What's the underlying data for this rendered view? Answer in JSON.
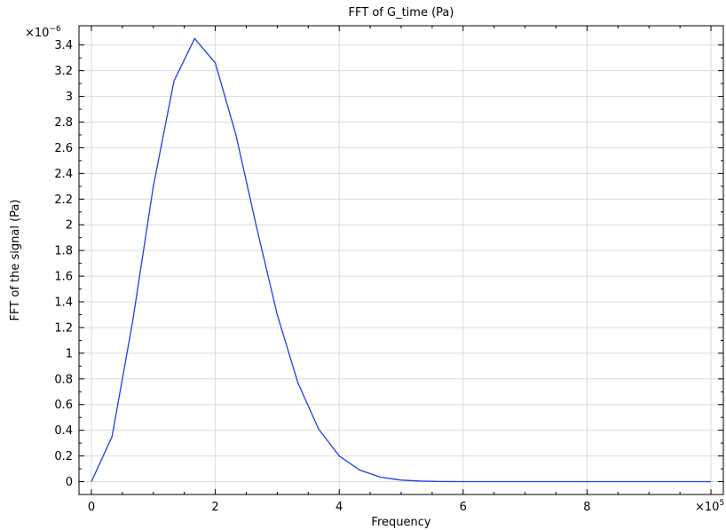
{
  "chart_data": {
    "type": "line",
    "title": "FFT of G_time (Pa)",
    "xlabel": "Frequency",
    "ylabel": "FFT of the signal (Pa)",
    "x_multiplier": "×10",
    "x_exponent": "5",
    "y_multiplier": "×10",
    "y_exponent": "−6",
    "xlim": [
      -0.2,
      10.2
    ],
    "ylim": [
      -0.1,
      3.55
    ],
    "x_ticks": [
      0,
      2,
      4,
      6,
      8
    ],
    "x_tick_labels": [
      "0",
      "2",
      "4",
      "6",
      "8"
    ],
    "y_ticks": [
      0,
      0.2,
      0.4,
      0.6,
      0.8,
      1,
      1.2,
      1.4,
      1.6,
      1.8,
      2,
      2.2,
      2.4,
      2.6,
      2.8,
      3,
      3.2,
      3.4
    ],
    "y_tick_labels": [
      "0",
      "0.2",
      "0.4",
      "0.6",
      "0.8",
      "1",
      "1.2",
      "1.4",
      "1.6",
      "1.8",
      "2",
      "2.2",
      "2.4",
      "2.6",
      "2.8",
      "3",
      "3.2",
      "3.4"
    ],
    "grid": true,
    "color": "#1f3ee6",
    "series": [
      {
        "x": [
          0,
          0.333,
          0.667,
          1.0,
          1.333,
          1.667,
          2.0,
          2.333,
          2.667,
          3.0,
          3.333,
          3.667,
          4.0,
          4.333,
          4.667,
          5.0,
          5.333,
          5.667,
          6.0,
          6.667,
          7.333,
          8.0,
          8.667,
          9.333,
          10.0
        ],
        "y": [
          0,
          0.35,
          1.25,
          2.3,
          3.12,
          3.45,
          3.26,
          2.7,
          1.98,
          1.3,
          0.77,
          0.41,
          0.2,
          0.09,
          0.035,
          0.012,
          0.004,
          0.001,
          0,
          0,
          0,
          0,
          0,
          0,
          0
        ]
      }
    ]
  }
}
